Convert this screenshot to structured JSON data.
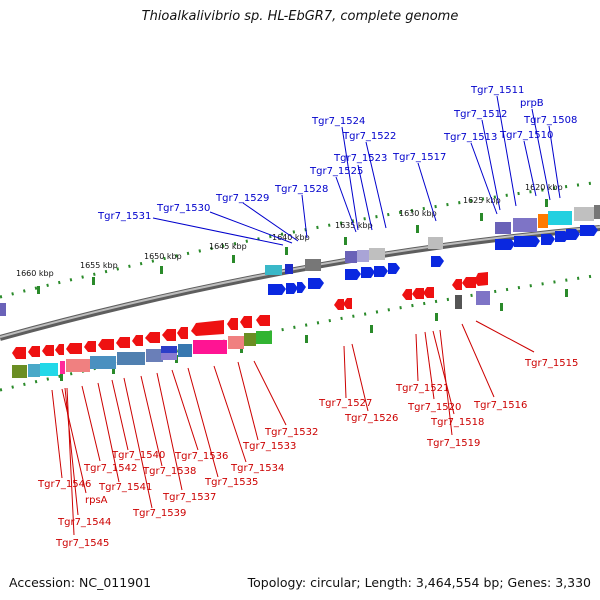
{
  "title": "Thioalkalivibrio sp. HL-EbGR7, complete genome",
  "footer": {
    "accession": "Accession: NC_011901",
    "summary": "Topology: circular; Length: 3,464,554 bp; Genes: 3,330"
  },
  "colors": {
    "forward_label": "#0000cc",
    "reverse_label": "#cc0000",
    "backbone": "#808080",
    "tick": "#2a8a2a",
    "forward_arrow": "#0a28e0",
    "reverse_arrow": "#ee1111"
  },
  "scale_labels": [
    "1660 kbp",
    "1655 kbp",
    "1650 kbp",
    "1645 kbp",
    "1640 kbp",
    "1635 kbp",
    "1630 kbp",
    "1625 kbp",
    "1620 kbp"
  ],
  "forward_genes": [
    "Tgr7_1531",
    "Tgr7_1530",
    "Tgr7_1529",
    "Tgr7_1528",
    "Tgr7_1525",
    "Tgr7_1524",
    "Tgr7_1523",
    "Tgr7_1522",
    "Tgr7_1517",
    "Tgr7_1513",
    "Tgr7_1512",
    "Tgr7_1511",
    "Tgr7_1510",
    "prpB",
    "Tgr7_1508"
  ],
  "reverse_genes": [
    "Tgr7_1546",
    "rpsA",
    "Tgr7_1544",
    "Tgr7_1545",
    "Tgr7_1542",
    "Tgr7_1541",
    "Tgr7_1540",
    "Tgr7_1539",
    "Tgr7_1538",
    "Tgr7_1537",
    "Tgr7_1536",
    "Tgr7_1535",
    "Tgr7_1534",
    "Tgr7_1533",
    "Tgr7_1532",
    "Tgr7_1527",
    "Tgr7_1526",
    "Tgr7_1521",
    "Tgr7_1520",
    "Tgr7_1518",
    "Tgr7_1519",
    "Tgr7_1516",
    "Tgr7_1515"
  ]
}
